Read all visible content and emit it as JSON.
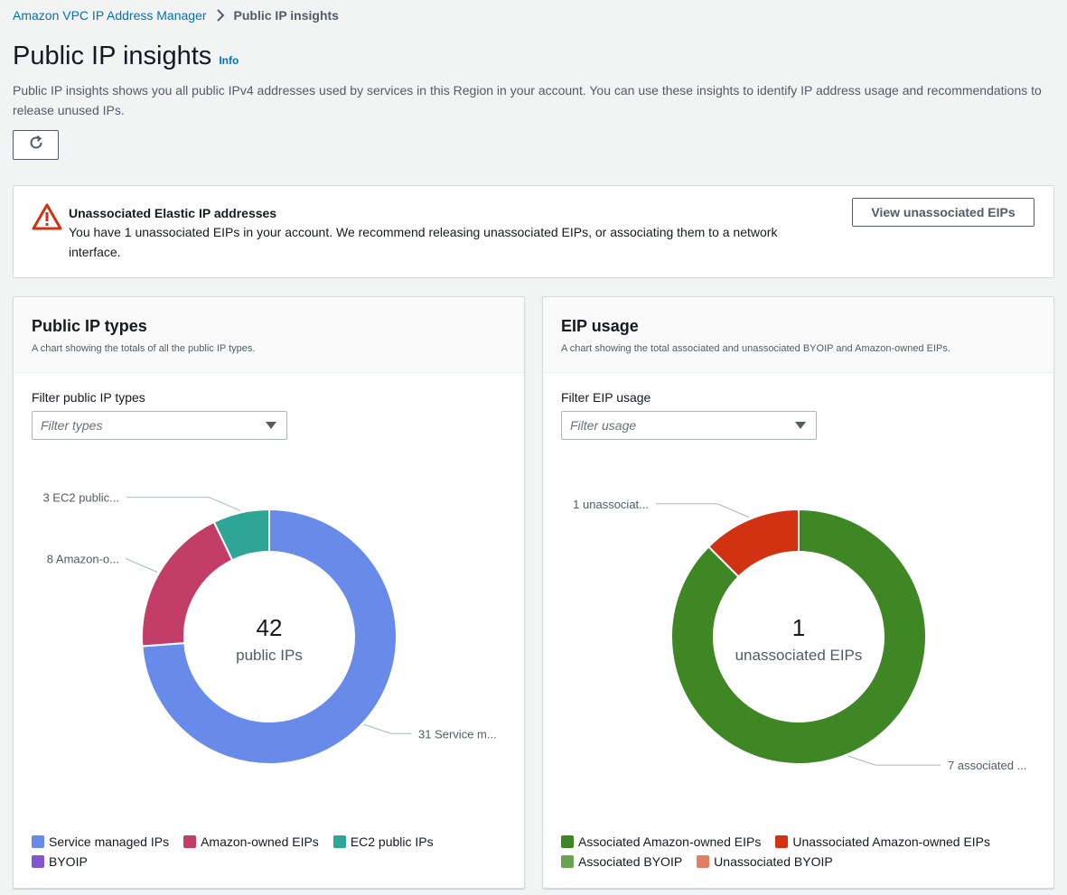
{
  "breadcrumb": {
    "parent": "Amazon VPC IP Address Manager",
    "current": "Public IP insights"
  },
  "page": {
    "title": "Public IP insights",
    "info_link": "Info",
    "description": "Public IP insights shows you all public IPv4 addresses used by services in this Region in your account. You can use these insights to identify IP address usage and recommendations to release unused IPs."
  },
  "alert": {
    "title": "Unassociated Elastic IP addresses",
    "body": "You have 1 unassociated EIPs in your account. We recommend releasing unassociated EIPs, or associating them to a network interface.",
    "button": "View unassociated EIPs"
  },
  "panels": {
    "ip_types": {
      "title": "Public IP types",
      "subtitle": "A chart showing the totals of all the public IP types.",
      "filter_label": "Filter public IP types",
      "filter_placeholder": "Filter types",
      "center_value": "42",
      "center_label": "public IPs"
    },
    "eip_usage": {
      "title": "EIP usage",
      "subtitle": "A chart showing the total associated and unassociated BYOIP and Amazon-owned EIPs.",
      "filter_label": "Filter EIP usage",
      "filter_placeholder": "Filter usage",
      "center_value": "1",
      "center_label": "unassociated EIPs"
    }
  },
  "chart_data": [
    {
      "type": "pie",
      "title": "Public IP types",
      "categories": [
        "Service managed IPs",
        "Amazon-owned EIPs",
        "EC2 public IPs",
        "BYOIP"
      ],
      "values": [
        31,
        8,
        3,
        0
      ],
      "colors": [
        "#688ae8",
        "#c33d69",
        "#2ea597",
        "#8456ce"
      ],
      "slice_labels": [
        "31 Service m...",
        "8 Amazon-o...",
        "3 EC2 public...",
        ""
      ]
    },
    {
      "type": "pie",
      "title": "EIP usage",
      "categories": [
        "Associated Amazon-owned EIPs",
        "Unassociated Amazon-owned EIPs",
        "Associated BYOIP",
        "Unassociated BYOIP"
      ],
      "values": [
        7,
        1,
        0,
        0
      ],
      "colors": [
        "#3f8624",
        "#d13212",
        "#67a353",
        "#e07f66"
      ],
      "slice_labels": [
        "7 associated ...",
        "1 unassociat...",
        "",
        ""
      ]
    }
  ]
}
